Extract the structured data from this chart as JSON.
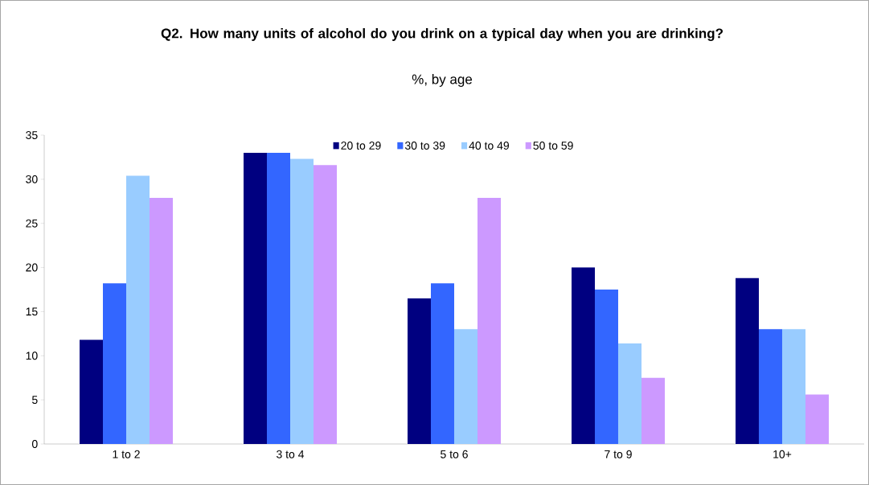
{
  "chart_data": {
    "type": "bar",
    "title": "Q2. How many units of alcohol do you drink on a typical day when you are drinking?",
    "subtitle": "%, by age",
    "categories": [
      "1 to 2",
      "3 to 4",
      "5 to 6",
      "7 to 9",
      "10+"
    ],
    "series": [
      {
        "name": "20 to 29",
        "color": "#000080",
        "values": [
          11.8,
          33.0,
          16.5,
          20.0,
          18.8
        ]
      },
      {
        "name": "30 to 39",
        "color": "#3366ff",
        "values": [
          18.2,
          33.0,
          18.2,
          17.5,
          13.0
        ]
      },
      {
        "name": "40 to 49",
        "color": "#99ccff",
        "values": [
          30.4,
          32.3,
          13.0,
          11.4,
          13.0
        ]
      },
      {
        "name": "50 to 59",
        "color": "#cc99ff",
        "values": [
          27.9,
          31.6,
          27.9,
          7.5,
          5.6
        ]
      }
    ],
    "ylim": [
      0,
      35
    ],
    "yticks": [
      0,
      5,
      10,
      15,
      20,
      25,
      30,
      35
    ],
    "legend": "top"
  }
}
